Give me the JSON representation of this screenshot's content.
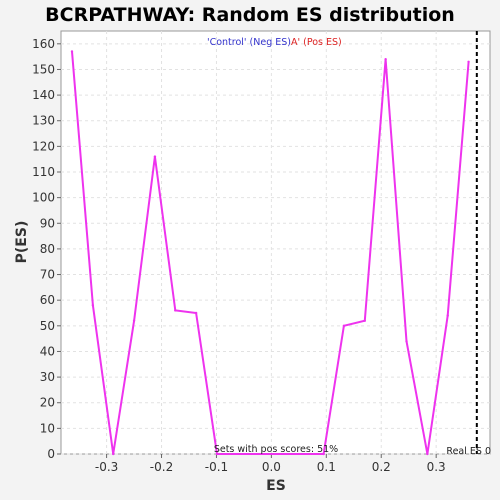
{
  "chart_data": {
    "type": "line",
    "title": "BCRPATHWAY: Random ES distribution",
    "xlabel": "ES",
    "ylabel": "P(ES)",
    "xlim": [
      -0.383,
      0.398
    ],
    "ylim": [
      0,
      165
    ],
    "xticks": [
      -0.3,
      -0.2,
      -0.1,
      0.0,
      0.1,
      0.2,
      0.3
    ],
    "xtick_labels": [
      "-0.3",
      "-0.2",
      "-0.1",
      "0.0",
      "0.1",
      "0.2",
      "0.3"
    ],
    "yticks": [
      0,
      10,
      20,
      30,
      40,
      50,
      60,
      70,
      80,
      90,
      100,
      110,
      120,
      130,
      140,
      150,
      160
    ],
    "ytick_labels": [
      "0",
      "10",
      "20",
      "30",
      "40",
      "50",
      "60",
      "70",
      "80",
      "90",
      "100",
      "110",
      "120",
      "130",
      "140",
      "150",
      "160"
    ],
    "grid": true,
    "series": [
      {
        "color": "#ee33ee",
        "x": [
          -0.363,
          -0.325,
          -0.288,
          -0.25,
          -0.212,
          -0.175,
          -0.137,
          -0.099,
          0.095,
          0.132,
          0.17,
          0.208,
          0.246,
          0.284,
          0.321,
          0.359
        ],
        "y": [
          157,
          58,
          0,
          52,
          116,
          56,
          55,
          0,
          0,
          50,
          52,
          154,
          44,
          0,
          54,
          153
        ]
      }
    ],
    "real_es": 0.374,
    "legend": {
      "placement": "top-center",
      "neg_label": "'Control' (Neg ES)",
      "pos_label": "A' (Pos ES)",
      "neg_color": "#3333cc",
      "pos_color": "#dd2222"
    },
    "annotations": {
      "sets_pos": "Sets with pos scores: 51%",
      "real_es_label": "Real ES 0"
    }
  }
}
